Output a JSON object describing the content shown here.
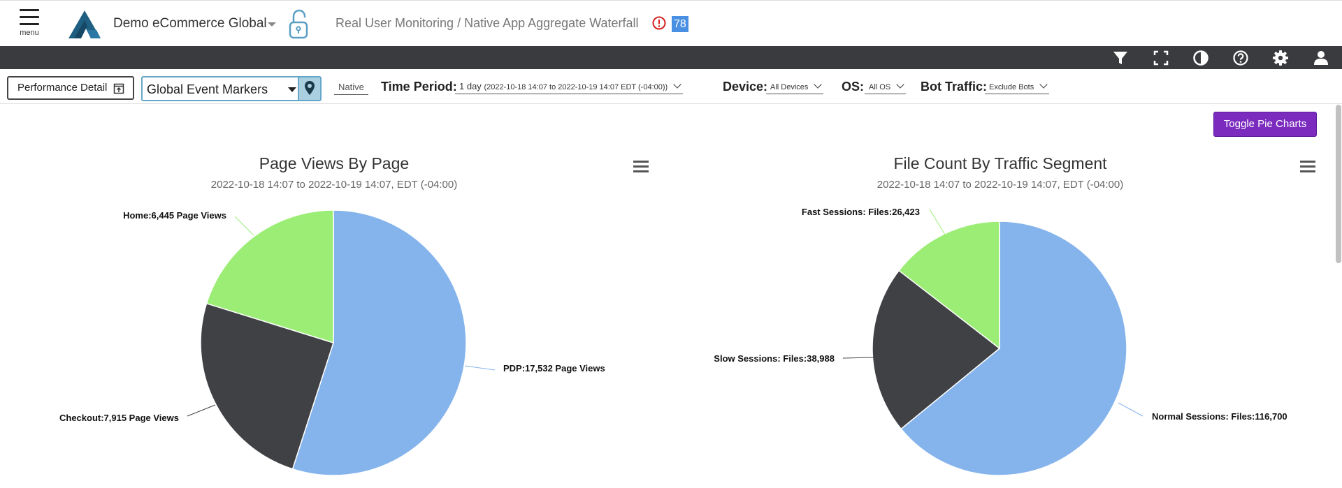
{
  "header": {
    "menu_label": "menu",
    "app_name": "Demo eCommerce Global",
    "breadcrumb": "Real User Monitoring / Native App Aggregate Waterfall",
    "alert_count": "78"
  },
  "toolbar": {
    "icons": [
      "filter-icon",
      "fullscreen-icon",
      "contrast-icon",
      "help-icon",
      "settings-icon",
      "user-icon"
    ]
  },
  "filters": {
    "performance_detail_label": "Performance Detail",
    "event_markers_value": "Global Event Markers",
    "native_label": "Native",
    "time_period_label": "Time Period:",
    "time_period_value": "1 day",
    "time_period_range": "(2022-10-18 14:07 to 2022-10-19 14:07 EDT (-04:00))",
    "device_label": "Device:",
    "device_value": "All Devices",
    "os_label": "OS:",
    "os_value": "All OS",
    "bot_label": "Bot Traffic:",
    "bot_value": "Exclude Bots"
  },
  "main": {
    "toggle_label": "Toggle Pie Charts"
  },
  "colors": {
    "blue": "#85b4ec",
    "dark": "#404145",
    "green": "#9ced76",
    "accent_purple": "#7b2cbf",
    "toolbar_bg": "#3a3b3e"
  },
  "chart_data": [
    {
      "type": "pie",
      "title": "Page Views By Page",
      "subtitle": "2022-10-18 14:07 to 2022-10-19 14:07, EDT (-04:00)",
      "slices": [
        {
          "name": "PDP",
          "value": 17532,
          "label": "PDP:17,532 Page Views",
          "color": "#85b4ec"
        },
        {
          "name": "Checkout",
          "value": 7915,
          "label": "Checkout:7,915 Page Views",
          "color": "#404145"
        },
        {
          "name": "Home",
          "value": 6445,
          "label": "Home:6,445 Page Views",
          "color": "#9ced76"
        }
      ]
    },
    {
      "type": "pie",
      "title": "File Count By Traffic Segment",
      "subtitle": "2022-10-18 14:07 to 2022-10-19 14:07, EDT (-04:00)",
      "slices": [
        {
          "name": "Normal Sessions",
          "value": 116700,
          "label": "Normal Sessions: Files:116,700",
          "color": "#85b4ec"
        },
        {
          "name": "Slow Sessions",
          "value": 38988,
          "label": "Slow Sessions: Files:38,988",
          "color": "#404145"
        },
        {
          "name": "Fast Sessions",
          "value": 26423,
          "label": "Fast Sessions: Files:26,423",
          "color": "#9ced76"
        }
      ]
    }
  ]
}
